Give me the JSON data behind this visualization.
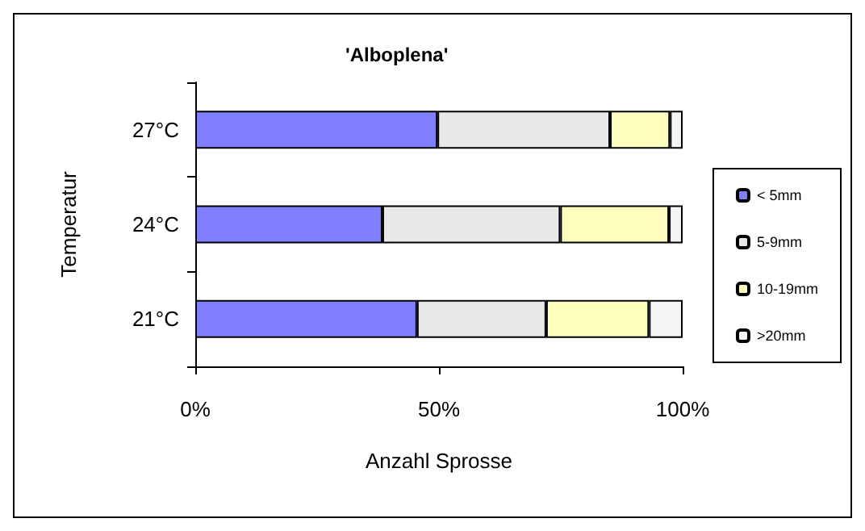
{
  "chart_data": {
    "type": "bar",
    "orientation": "horizontal",
    "stacked": true,
    "title": "'Alboplena'",
    "xlabel": "Anzahl Sprosse",
    "ylabel": "Temperatur",
    "categories": [
      "27°C",
      "24°C",
      "21°C"
    ],
    "series": [
      {
        "name": "< 5mm",
        "color": "#8080ff",
        "values": [
          49.7,
          38.4,
          45.5
        ]
      },
      {
        "name": "5-9mm",
        "color": "#e8e8e8",
        "values": [
          35.4,
          36.5,
          26.5
        ]
      },
      {
        "name": "10-19mm",
        "color": "#ffffc0",
        "values": [
          12.3,
          22.3,
          21.1
        ]
      },
      {
        "name": ">20mm",
        "color": "#f4f4f4",
        "values": [
          2.6,
          2.8,
          6.9
        ]
      }
    ],
    "xlim": [
      0,
      100
    ],
    "xticks": [
      {
        "value": 0,
        "label": "0%"
      },
      {
        "value": 50,
        "label": "50%"
      },
      {
        "value": 100,
        "label": "100%"
      }
    ],
    "grid": false,
    "legend": "right"
  }
}
